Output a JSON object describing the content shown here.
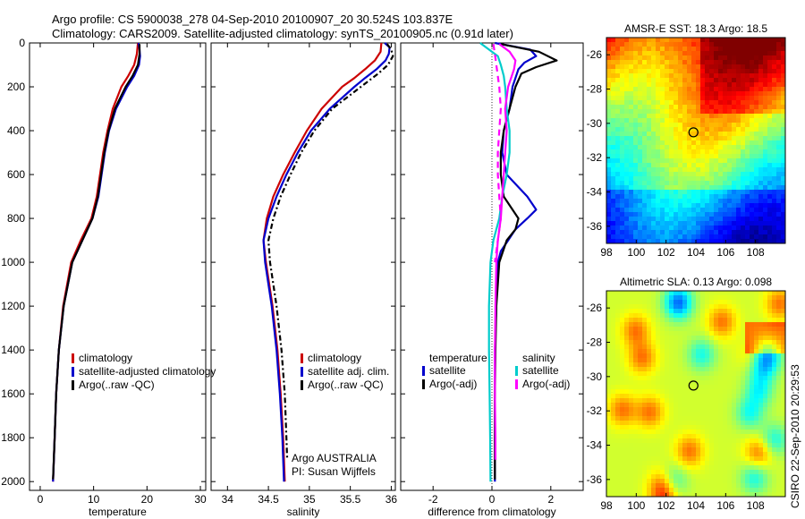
{
  "header": {
    "line1": "Argo profile: CS 5900038_278 04-Sep-2010 20100907_20 30.524S 103.837E",
    "line2": "Climatology: CARS2009. Satellite-adjusted climatology: synTS_20100905.nc (0.91d later)"
  },
  "colors": {
    "climatology": "#cc0000",
    "satellite": "#0000cc",
    "argo": "#000000",
    "sal_satellite": "#00cccc",
    "sal_argo": "#ff00ff"
  },
  "footer": "CSIRO 22-Sep-2010 20:29:53",
  "chart_data": [
    {
      "type": "line",
      "id": "temperature",
      "xlabel": "temperature",
      "xlim": [
        -2,
        31
      ],
      "ylim": [
        2040,
        0
      ],
      "xticks": [
        0,
        10,
        20,
        30
      ],
      "yticks": [
        0,
        200,
        400,
        600,
        800,
        1000,
        1200,
        1400,
        1600,
        1800,
        2000
      ],
      "legend": [
        "climatology",
        "satellite-adjusted climatology",
        "Argo(..raw -QC)"
      ],
      "series": [
        {
          "name": "climatology",
          "color": "#cc0000",
          "dash": "",
          "depth": [
            0,
            50,
            100,
            150,
            200,
            300,
            400,
            500,
            600,
            700,
            800,
            900,
            1000,
            1200,
            1400,
            1600,
            1800,
            2000
          ],
          "values": [
            18.3,
            18.1,
            17.6,
            16.5,
            15.2,
            13.6,
            12.6,
            11.8,
            11.2,
            10.6,
            9.6,
            7.6,
            5.8,
            4.3,
            3.5,
            3.0,
            2.7,
            2.4
          ]
        },
        {
          "name": "satellite-adjusted climatology",
          "color": "#0000cc",
          "dash": "",
          "depth": [
            0,
            30,
            60,
            100,
            150,
            200,
            300,
            400,
            500,
            600,
            700,
            800,
            900,
            1000,
            1200,
            1400,
            1600,
            1800,
            2000
          ],
          "values": [
            18.4,
            18.6,
            18.7,
            18.5,
            17.6,
            16.3,
            14.2,
            12.9,
            12.1,
            11.5,
            10.9,
            9.8,
            7.9,
            6.0,
            4.4,
            3.5,
            3.0,
            2.7,
            2.4
          ]
        },
        {
          "name": "Argo(..raw -QC)",
          "color": "#000000",
          "dash": "",
          "depth": [
            5,
            50,
            100,
            150,
            200,
            300,
            400,
            500,
            600,
            700,
            800,
            900,
            1000,
            1200,
            1400,
            1600,
            1800,
            1990
          ],
          "values": [
            18.6,
            18.6,
            18.3,
            17.3,
            16.0,
            14.0,
            12.8,
            12.0,
            11.4,
            10.8,
            9.8,
            7.9,
            6.0,
            4.4,
            3.5,
            3.0,
            2.7,
            2.4
          ]
        }
      ]
    },
    {
      "type": "line",
      "id": "salinity",
      "xlabel": "salinity",
      "xlim": [
        33.8,
        36.05
      ],
      "ylim": [
        2040,
        0
      ],
      "xticks": [
        34,
        34.5,
        35,
        35.5,
        36
      ],
      "xticklabels": [
        "34",
        "34.5",
        "35",
        "35.5",
        "36"
      ],
      "legend": [
        "climatology",
        "satellite adj. clim.",
        "Argo(..raw -QC)"
      ],
      "annotation": [
        "Argo AUSTRALIA",
        "PI: Susan Wijffels"
      ],
      "series": [
        {
          "name": "climatology",
          "color": "#cc0000",
          "dash": "",
          "depth": [
            0,
            40,
            80,
            120,
            160,
            200,
            300,
            400,
            500,
            600,
            700,
            800,
            900,
            1000,
            1200,
            1400,
            1600,
            1800,
            2000
          ],
          "values": [
            35.88,
            35.87,
            35.8,
            35.68,
            35.55,
            35.4,
            35.15,
            34.97,
            34.82,
            34.68,
            34.56,
            34.48,
            34.44,
            34.47,
            34.55,
            34.61,
            34.65,
            34.68,
            34.7
          ]
        },
        {
          "name": "satellite adj. clim.",
          "color": "#0000cc",
          "dash": "",
          "depth": [
            0,
            20,
            50,
            80,
            120,
            160,
            200,
            300,
            400,
            500,
            600,
            700,
            800,
            900,
            1000,
            1200,
            1400,
            1600,
            1800,
            2000
          ],
          "values": [
            35.92,
            35.98,
            35.97,
            35.93,
            35.82,
            35.68,
            35.55,
            35.25,
            35.02,
            34.86,
            34.72,
            34.6,
            34.5,
            34.44,
            34.46,
            34.54,
            34.6,
            34.64,
            34.67,
            34.69
          ]
        },
        {
          "name": "Argo(..raw -QC)",
          "color": "#000000",
          "dash": "6,3,2,3",
          "depth": [
            5,
            30,
            60,
            100,
            140,
            200,
            300,
            400,
            500,
            600,
            700,
            800,
            900,
            1000,
            1200,
            1400,
            1600,
            1800,
            1900
          ],
          "values": [
            35.95,
            36.0,
            36.02,
            35.96,
            35.84,
            35.63,
            35.28,
            35.06,
            34.9,
            34.77,
            34.65,
            34.56,
            34.5,
            34.52,
            34.6,
            34.66,
            34.7,
            34.72,
            34.73
          ]
        }
      ]
    },
    {
      "type": "line",
      "id": "difference",
      "xlabel": "difference from climatology",
      "xlim": [
        -3.1,
        3.1
      ],
      "ylim": [
        2040,
        0
      ],
      "xticks": [
        -2,
        0,
        2
      ],
      "legend_temperature_title": "temperature",
      "legend_salinity_title": "salinity",
      "legend_temperature": [
        "satellite",
        "Argo(-adj)"
      ],
      "legend_salinity": [
        "satellite",
        "Argo(-adj)"
      ],
      "series": [
        {
          "name": "temperature satellite",
          "color": "#0000cc",
          "dash": "",
          "depth": [
            0,
            30,
            60,
            90,
            120,
            160,
            200,
            300,
            400,
            500,
            600,
            700,
            760,
            800,
            850,
            900,
            950,
            1000,
            1100,
            1200,
            1400,
            1600,
            1800,
            2000
          ],
          "values": [
            0.1,
            1.3,
            1.5,
            1.1,
            0.9,
            0.8,
            0.7,
            0.6,
            0.4,
            0.35,
            0.5,
            1.2,
            1.5,
            1.2,
            0.8,
            0.55,
            0.3,
            0.2,
            0.15,
            0.15,
            0.1,
            0.1,
            0.1,
            0.1
          ]
        },
        {
          "name": "temperature Argo(-adj)",
          "color": "#000000",
          "dash": "",
          "depth": [
            5,
            40,
            80,
            110,
            140,
            200,
            300,
            400,
            500,
            600,
            700,
            800,
            850,
            900,
            1000,
            1100,
            1200,
            1400,
            1600,
            1800,
            1990
          ],
          "values": [
            0.3,
            1.6,
            2.2,
            1.5,
            1.0,
            0.8,
            0.6,
            0.4,
            0.3,
            0.3,
            0.4,
            0.9,
            0.8,
            0.5,
            0.25,
            0.2,
            0.15,
            0.12,
            0.1,
            0.1,
            0.1
          ]
        },
        {
          "name": "salinity satellite",
          "color": "#00cccc",
          "dash": "",
          "depth": [
            0,
            30,
            60,
            100,
            150,
            200,
            300,
            400,
            500,
            600,
            700,
            800,
            900,
            1000,
            1200,
            1400,
            1600,
            1800,
            2000
          ],
          "values": [
            -0.4,
            -0.1,
            0.2,
            0.3,
            0.4,
            0.45,
            0.5,
            0.6,
            0.6,
            0.5,
            0.35,
            0.25,
            0.05,
            -0.05,
            -0.1,
            -0.1,
            -0.08,
            -0.06,
            -0.05
          ]
        },
        {
          "name": "salinity Argo(-adj)",
          "color": "#ff00ff",
          "dash": "",
          "depth": [
            5,
            40,
            80,
            120,
            160,
            200,
            300,
            400,
            500,
            600,
            700,
            800,
            900,
            1000,
            1200,
            1400,
            1600,
            1800,
            1900
          ],
          "values": [
            0.25,
            0.6,
            0.8,
            0.75,
            0.65,
            0.55,
            0.45,
            0.5,
            0.45,
            0.4,
            0.35,
            0.3,
            0.2,
            0.15,
            0.12,
            0.1,
            0.1,
            0.12,
            0.12
          ]
        },
        {
          "name": "Argo salinity minus climatology",
          "color": "#ff00ff",
          "dash": "7,5",
          "depth": [
            5,
            50,
            100,
            200,
            300,
            400,
            500,
            600,
            700,
            800,
            900,
            1000
          ],
          "values": [
            0.05,
            0.1,
            0.15,
            0.25,
            0.3,
            0.25,
            0.2,
            0.2,
            0.25,
            0.3,
            0.2,
            0.1
          ]
        }
      ]
    },
    {
      "type": "heatmap",
      "id": "sst_map",
      "title": "AMSR-E SST: 18.3 Argo: 18.5",
      "xlim": [
        98,
        110
      ],
      "ylim": [
        -37,
        -25
      ],
      "xticks": [
        98,
        100,
        102,
        104,
        106,
        108
      ],
      "yticks": [
        -26,
        -28,
        -30,
        -32,
        -34,
        -36
      ],
      "profile_location": {
        "lon": 103.837,
        "lat": -30.524
      }
    },
    {
      "type": "heatmap",
      "id": "sla_map",
      "title": "Altimetric SLA: 0.13 Argo: 0.098",
      "xlim": [
        98,
        110
      ],
      "ylim": [
        -37,
        -25
      ],
      "xticks": [
        98,
        100,
        102,
        104,
        106,
        108
      ],
      "yticks": [
        -26,
        -28,
        -30,
        -32,
        -34,
        -36
      ],
      "profile_location": {
        "lon": 103.837,
        "lat": -30.524
      }
    }
  ]
}
